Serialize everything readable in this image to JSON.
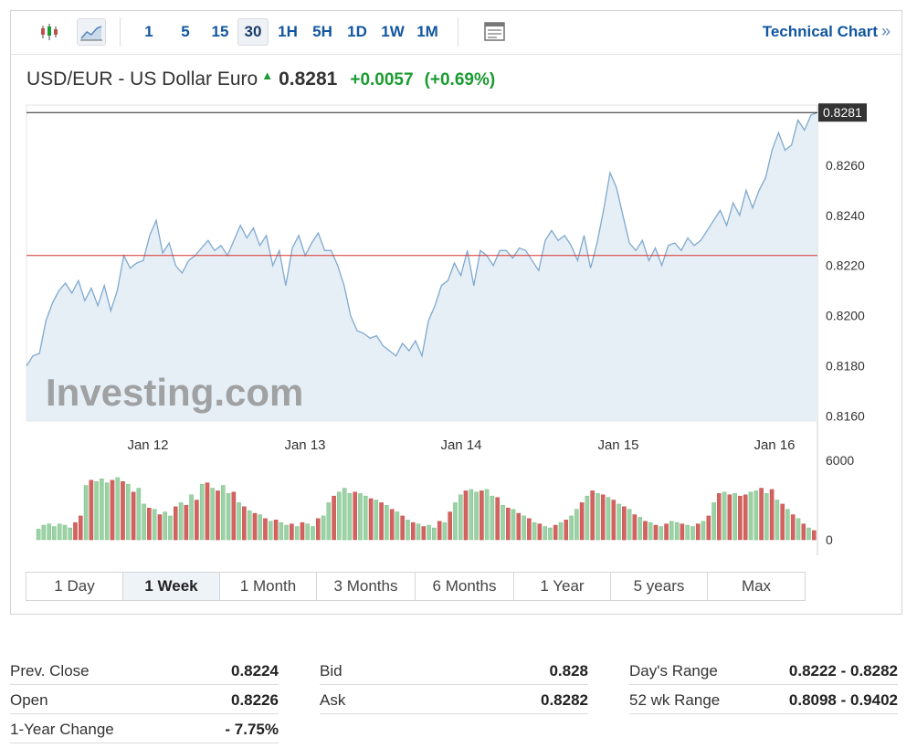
{
  "toolbar": {
    "icons": {
      "candles": "candlestick-icon",
      "area": "area-chart-icon",
      "table": "table-icon"
    },
    "intervals": [
      "1",
      "5",
      "15",
      "30",
      "1H",
      "5H",
      "1D",
      "1W",
      "1M"
    ],
    "active_interval": "30",
    "technical_chart_label": "Technical Chart",
    "technical_chart_arrow": "»"
  },
  "quote": {
    "name": "USD/EUR - US Dollar Euro",
    "last": "0.8281",
    "change": "+0.0057",
    "change_pct": "(+0.69%)"
  },
  "colors": {
    "up": "#1b9b31",
    "down": "#c0504d",
    "line": "#7fa9cf",
    "area": "#e6eef6",
    "link": "#1256a0",
    "prev_close_line": "#d9332f"
  },
  "chart_data": {
    "type": "area",
    "watermark": "Investing.com",
    "x_ticks": [
      "Jan 12",
      "Jan 13",
      "Jan 14",
      "Jan 15",
      "Jan 16"
    ],
    "y_ticks": [
      "0.8260",
      "0.8240",
      "0.8220",
      "0.8200",
      "0.8180",
      "0.8160"
    ],
    "ylim": [
      0.8158,
      0.8284
    ],
    "last_price": 0.8281,
    "last_price_label": "0.8281",
    "prev_close": 0.8224,
    "price_points": [
      [
        0,
        0.818
      ],
      [
        0.6,
        0.8184
      ],
      [
        1.2,
        0.8185
      ],
      [
        1.8,
        0.8198
      ],
      [
        2.4,
        0.8205
      ],
      [
        3.0,
        0.821
      ],
      [
        3.6,
        0.8213
      ],
      [
        4.2,
        0.8209
      ],
      [
        4.8,
        0.8214
      ],
      [
        5.4,
        0.8206
      ],
      [
        6.0,
        0.8211
      ],
      [
        6.6,
        0.8204
      ],
      [
        7.2,
        0.8212
      ],
      [
        7.8,
        0.8202
      ],
      [
        8.4,
        0.821
      ],
      [
        9.0,
        0.8224
      ],
      [
        9.6,
        0.8219
      ],
      [
        10.2,
        0.8221
      ],
      [
        10.8,
        0.8222
      ],
      [
        11.4,
        0.8232
      ],
      [
        12.0,
        0.8238
      ],
      [
        12.6,
        0.8225
      ],
      [
        13.2,
        0.8229
      ],
      [
        13.8,
        0.822
      ],
      [
        14.4,
        0.8217
      ],
      [
        15.0,
        0.8222
      ],
      [
        15.6,
        0.8224
      ],
      [
        16.2,
        0.8227
      ],
      [
        16.8,
        0.823
      ],
      [
        17.4,
        0.8226
      ],
      [
        18.0,
        0.8228
      ],
      [
        18.6,
        0.8224
      ],
      [
        19.2,
        0.823
      ],
      [
        19.8,
        0.8236
      ],
      [
        20.4,
        0.8231
      ],
      [
        21.0,
        0.8235
      ],
      [
        21.6,
        0.8228
      ],
      [
        22.2,
        0.8232
      ],
      [
        22.8,
        0.822
      ],
      [
        23.4,
        0.8226
      ],
      [
        24.0,
        0.8212
      ],
      [
        24.6,
        0.8227
      ],
      [
        25.2,
        0.8232
      ],
      [
        25.8,
        0.8224
      ],
      [
        26.4,
        0.8229
      ],
      [
        27.0,
        0.8233
      ],
      [
        27.6,
        0.8226
      ],
      [
        28.2,
        0.8226
      ],
      [
        28.8,
        0.822
      ],
      [
        29.4,
        0.8212
      ],
      [
        30.0,
        0.82
      ],
      [
        30.6,
        0.8194
      ],
      [
        31.2,
        0.8193
      ],
      [
        31.8,
        0.8191
      ],
      [
        32.4,
        0.8192
      ],
      [
        33.0,
        0.8188
      ],
      [
        33.6,
        0.8186
      ],
      [
        34.2,
        0.8184
      ],
      [
        34.8,
        0.8189
      ],
      [
        35.4,
        0.8186
      ],
      [
        36.0,
        0.819
      ],
      [
        36.6,
        0.8184
      ],
      [
        37.2,
        0.8198
      ],
      [
        37.8,
        0.8204
      ],
      [
        38.4,
        0.8212
      ],
      [
        39.0,
        0.8214
      ],
      [
        39.6,
        0.8221
      ],
      [
        40.2,
        0.8216
      ],
      [
        40.8,
        0.8226
      ],
      [
        41.4,
        0.8212
      ],
      [
        42.0,
        0.8226
      ],
      [
        42.6,
        0.8224
      ],
      [
        43.2,
        0.822
      ],
      [
        43.8,
        0.8226
      ],
      [
        44.4,
        0.8226
      ],
      [
        45.0,
        0.8223
      ],
      [
        45.6,
        0.8227
      ],
      [
        46.2,
        0.8226
      ],
      [
        46.8,
        0.8222
      ],
      [
        47.4,
        0.8218
      ],
      [
        48.0,
        0.823
      ],
      [
        48.6,
        0.8234
      ],
      [
        49.2,
        0.823
      ],
      [
        49.8,
        0.8232
      ],
      [
        50.4,
        0.8228
      ],
      [
        51.0,
        0.8222
      ],
      [
        51.6,
        0.8232
      ],
      [
        52.2,
        0.8219
      ],
      [
        52.8,
        0.8229
      ],
      [
        53.4,
        0.8242
      ],
      [
        54.0,
        0.8257
      ],
      [
        54.6,
        0.8251
      ],
      [
        55.2,
        0.824
      ],
      [
        55.8,
        0.8229
      ],
      [
        56.4,
        0.8226
      ],
      [
        57.0,
        0.823
      ],
      [
        57.6,
        0.8222
      ],
      [
        58.2,
        0.8227
      ],
      [
        58.8,
        0.822
      ],
      [
        59.4,
        0.8228
      ],
      [
        60.0,
        0.8229
      ],
      [
        60.6,
        0.8226
      ],
      [
        61.2,
        0.8231
      ],
      [
        61.8,
        0.8228
      ],
      [
        62.4,
        0.823
      ],
      [
        63.0,
        0.8234
      ],
      [
        63.6,
        0.8238
      ],
      [
        64.2,
        0.8242
      ],
      [
        64.8,
        0.8236
      ],
      [
        65.4,
        0.8245
      ],
      [
        66.0,
        0.824
      ],
      [
        66.6,
        0.825
      ],
      [
        67.2,
        0.8243
      ],
      [
        67.8,
        0.825
      ],
      [
        68.4,
        0.8255
      ],
      [
        69.0,
        0.8266
      ],
      [
        69.6,
        0.8273
      ],
      [
        70.2,
        0.8266
      ],
      [
        70.8,
        0.8268
      ],
      [
        71.4,
        0.8278
      ],
      [
        72.0,
        0.8274
      ],
      [
        72.6,
        0.828
      ],
      [
        73.2,
        0.8281
      ]
    ],
    "volume_ticks": [
      "6000",
      "0"
    ],
    "volume_max": 6000,
    "volume": [
      [
        800,
        1
      ],
      [
        1100,
        1
      ],
      [
        1200,
        1
      ],
      [
        1000,
        1
      ],
      [
        1200,
        1
      ],
      [
        1100,
        1
      ],
      [
        900,
        1
      ],
      [
        1300,
        0
      ],
      [
        1800,
        0
      ],
      [
        4100,
        1
      ],
      [
        4500,
        0
      ],
      [
        4400,
        1
      ],
      [
        4600,
        1
      ],
      [
        4300,
        1
      ],
      [
        4500,
        0
      ],
      [
        4700,
        1
      ],
      [
        4400,
        0
      ],
      [
        4200,
        1
      ],
      [
        3600,
        0
      ],
      [
        3900,
        1
      ],
      [
        2700,
        1
      ],
      [
        2400,
        0
      ],
      [
        2300,
        1
      ],
      [
        1900,
        0
      ],
      [
        2100,
        1
      ],
      [
        1800,
        1
      ],
      [
        2500,
        0
      ],
      [
        2800,
        1
      ],
      [
        2600,
        0
      ],
      [
        3400,
        1
      ],
      [
        3000,
        0
      ],
      [
        4200,
        1
      ],
      [
        4300,
        0
      ],
      [
        3900,
        1
      ],
      [
        3700,
        0
      ],
      [
        4100,
        1
      ],
      [
        3500,
        1
      ],
      [
        3600,
        0
      ],
      [
        2800,
        1
      ],
      [
        2500,
        0
      ],
      [
        2200,
        1
      ],
      [
        2000,
        0
      ],
      [
        1900,
        1
      ],
      [
        1600,
        0
      ],
      [
        1400,
        1
      ],
      [
        1500,
        0
      ],
      [
        1300,
        1
      ],
      [
        1100,
        1
      ],
      [
        1200,
        0
      ],
      [
        1000,
        1
      ],
      [
        1300,
        0
      ],
      [
        1200,
        1
      ],
      [
        1000,
        1
      ],
      [
        1600,
        0
      ],
      [
        1800,
        1
      ],
      [
        2800,
        1
      ],
      [
        3300,
        0
      ],
      [
        3600,
        1
      ],
      [
        3900,
        1
      ],
      [
        3500,
        1
      ],
      [
        3600,
        0
      ],
      [
        3500,
        1
      ],
      [
        3300,
        1
      ],
      [
        3100,
        0
      ],
      [
        3000,
        1
      ],
      [
        2800,
        0
      ],
      [
        2600,
        1
      ],
      [
        2300,
        0
      ],
      [
        2100,
        1
      ],
      [
        1800,
        0
      ],
      [
        1500,
        1
      ],
      [
        1300,
        0
      ],
      [
        1200,
        1
      ],
      [
        1000,
        0
      ],
      [
        1100,
        1
      ],
      [
        900,
        1
      ],
      [
        1400,
        0
      ],
      [
        1300,
        1
      ],
      [
        2100,
        0
      ],
      [
        2800,
        1
      ],
      [
        3400,
        1
      ],
      [
        3700,
        0
      ],
      [
        3800,
        1
      ],
      [
        3600,
        1
      ],
      [
        3700,
        0
      ],
      [
        3800,
        1
      ],
      [
        3300,
        1
      ],
      [
        3200,
        0
      ],
      [
        2600,
        1
      ],
      [
        2400,
        0
      ],
      [
        2300,
        1
      ],
      [
        2000,
        0
      ],
      [
        1800,
        1
      ],
      [
        1600,
        0
      ],
      [
        1300,
        1
      ],
      [
        1200,
        0
      ],
      [
        1000,
        1
      ],
      [
        900,
        1
      ],
      [
        1100,
        0
      ],
      [
        1300,
        1
      ],
      [
        1500,
        0
      ],
      [
        1800,
        1
      ],
      [
        2300,
        1
      ],
      [
        2800,
        0
      ],
      [
        3300,
        1
      ],
      [
        3700,
        0
      ],
      [
        3500,
        1
      ],
      [
        3400,
        0
      ],
      [
        3200,
        1
      ],
      [
        3000,
        0
      ],
      [
        2700,
        1
      ],
      [
        2500,
        0
      ],
      [
        2300,
        1
      ],
      [
        1900,
        0
      ],
      [
        1700,
        1
      ],
      [
        1400,
        0
      ],
      [
        1300,
        1
      ],
      [
        1100,
        0
      ],
      [
        1000,
        1
      ],
      [
        1200,
        0
      ],
      [
        1400,
        1
      ],
      [
        1300,
        1
      ],
      [
        1200,
        0
      ],
      [
        1100,
        1
      ],
      [
        1000,
        1
      ],
      [
        1200,
        0
      ],
      [
        1400,
        1
      ],
      [
        1800,
        0
      ],
      [
        2800,
        1
      ],
      [
        3500,
        0
      ],
      [
        3600,
        1
      ],
      [
        3400,
        0
      ],
      [
        3500,
        1
      ],
      [
        3300,
        0
      ],
      [
        3400,
        0
      ],
      [
        3600,
        1
      ],
      [
        3700,
        1
      ],
      [
        3900,
        0
      ],
      [
        3500,
        1
      ],
      [
        3800,
        0
      ],
      [
        3000,
        1
      ],
      [
        2700,
        0
      ],
      [
        2300,
        1
      ],
      [
        1900,
        0
      ],
      [
        1600,
        1
      ],
      [
        1200,
        0
      ],
      [
        900,
        1
      ],
      [
        700,
        0
      ]
    ]
  },
  "ranges": [
    "1 Day",
    "1 Week",
    "1 Month",
    "3 Months",
    "6 Months",
    "1 Year",
    "5 years",
    "Max"
  ],
  "active_range": "1 Week",
  "stats": [
    [
      {
        "label": "Prev. Close",
        "value": "0.8224"
      },
      {
        "label": "Open",
        "value": "0.8226"
      },
      {
        "label": "1-Year Change",
        "value": "- 7.75%"
      }
    ],
    [
      {
        "label": "Bid",
        "value": "0.828"
      },
      {
        "label": "Ask",
        "value": "0.8282"
      }
    ],
    [
      {
        "label": "Day's Range",
        "value": "0.8222 - 0.8282"
      },
      {
        "label": "52 wk Range",
        "value": "0.8098 - 0.9402"
      }
    ]
  ]
}
